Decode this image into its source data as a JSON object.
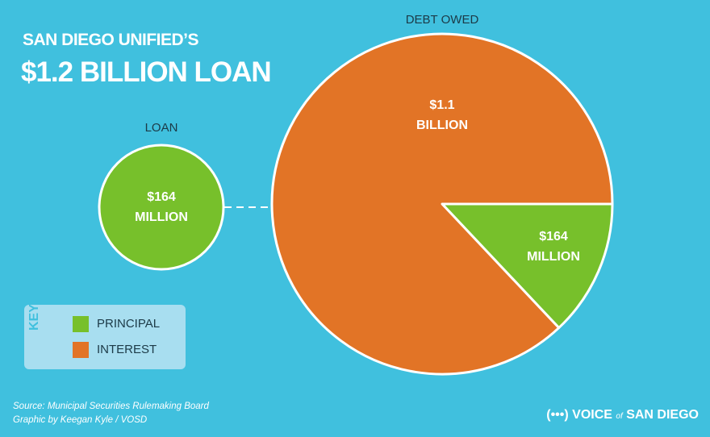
{
  "header": {
    "line1": "SAN DIEGO UNIFIED’S",
    "line2": "$1.2 BILLION LOAN"
  },
  "chart_data": [
    {
      "type": "pie",
      "title": "LOAN",
      "values": [
        164
      ],
      "value_labels": [
        "$164 MILLION"
      ],
      "colors": [
        "#77c02b"
      ]
    },
    {
      "type": "pie",
      "title": "DEBT OWED",
      "values": [
        164,
        1100
      ],
      "value_labels": [
        "$164 MILLION",
        "$1.1 BILLION"
      ],
      "colors": [
        "#77c02b",
        "#e27426"
      ]
    }
  ],
  "legend": {
    "title": "KEY",
    "items": [
      {
        "name": "PRINCIPAL",
        "color": "#77c02b"
      },
      {
        "name": "INTEREST",
        "color": "#e27426"
      }
    ]
  },
  "footer": {
    "source": "Source: Municipal Securities Rulemaking Board",
    "credit": "Graphic by Keegan Kyle / VOSD"
  },
  "logo": {
    "mark": "(•••)",
    "part1": "VOICE",
    "part2": "of",
    "part3": "SAN DIEGO"
  }
}
